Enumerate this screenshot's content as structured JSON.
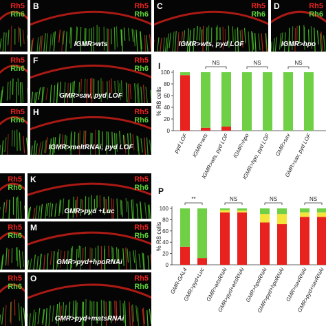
{
  "stain_labels": [
    "Rh5",
    "Rh6"
  ],
  "panels": [
    {
      "letter": "B",
      "caption": "IGMR>wts"
    },
    {
      "letter": "C",
      "caption": "IGMR>wts, pyd LOF"
    },
    {
      "letter": "D",
      "caption": "IGMR>hpo"
    },
    {
      "letter": "F",
      "caption": "GMR>sav, pyd LOF"
    },
    {
      "letter": "H",
      "caption": "IGMR>meltRNAi, pyd LOF"
    },
    {
      "letter": "K",
      "caption": "GMR>pyd +Luc"
    },
    {
      "letter": "M",
      "caption": "GMR>pyd+hpoRNAi"
    },
    {
      "letter": "O",
      "caption": "GMR>pyd+matsRNAi"
    }
  ],
  "chart_data": [
    {
      "type": "stacked-bar",
      "panel_label": "I",
      "y_label": "% R8 cells",
      "categories": [
        "pyd LOF",
        "IGMR>wts",
        "IGMR>wts, pyd LOF",
        "IGMR>hpo",
        "IGMR>hpo, pyd LOF",
        "GMR>sav",
        "GMR>sav, pyd LOF"
      ],
      "series": [
        {
          "color": "#e8231f",
          "values": [
            95,
            5,
            7,
            0,
            0,
            0,
            0
          ]
        },
        {
          "color": "#6fd046",
          "values": [
            5,
            95,
            93,
            100,
            100,
            100,
            100
          ]
        }
      ],
      "ylim": [
        0,
        100
      ],
      "yticks": [
        0,
        20,
        40,
        60,
        80,
        100
      ],
      "annotations": [
        "NS",
        "NS",
        "NS"
      ]
    },
    {
      "type": "stacked-bar",
      "panel_label": "P",
      "y_label": "% R8 cells",
      "categories": [
        "GMR-GAL4",
        "GMR>pyd+Luc",
        "GMR>wtsRNAi",
        "GMR>pyd+wtsRNAi",
        "GMR>hpoRNAi",
        "GMR>pyd+hpoRNAi",
        "GMR>savRNAi",
        "GMR>pyd+savRNAi"
      ],
      "series": [
        {
          "color": "#e8231f",
          "values": [
            32,
            12,
            93,
            93,
            75,
            72,
            85,
            85
          ]
        },
        {
          "color": "#f3e53a",
          "values": [
            0,
            0,
            4,
            3,
            15,
            18,
            8,
            8
          ]
        },
        {
          "color": "#6fd046",
          "values": [
            68,
            88,
            3,
            4,
            10,
            10,
            7,
            7
          ]
        }
      ],
      "ylim": [
        0,
        100
      ],
      "yticks": [
        0,
        20,
        40,
        60,
        80,
        100
      ],
      "annotations": [
        "**",
        "NS",
        "NS",
        "NS"
      ]
    }
  ]
}
